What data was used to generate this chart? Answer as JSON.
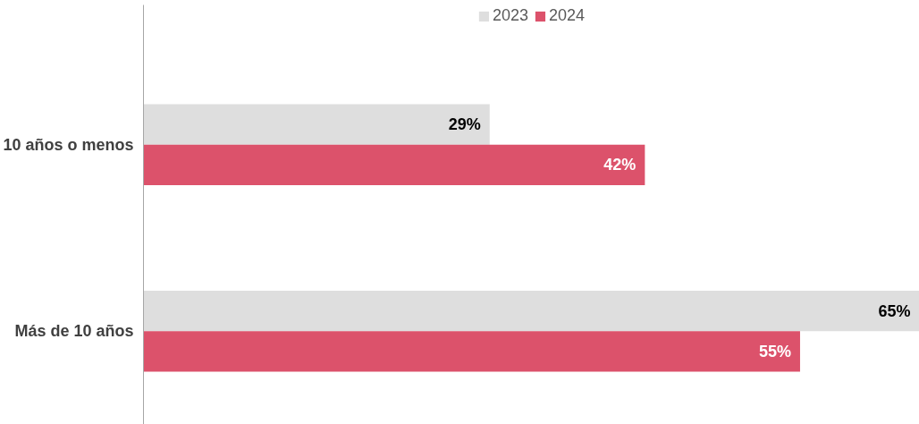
{
  "chart_data": {
    "type": "bar",
    "orientation": "horizontal",
    "categories": [
      "10 años o menos",
      "Más de 10 años"
    ],
    "series": [
      {
        "name": "2023",
        "color": "#dedede",
        "values": [
          29,
          65
        ],
        "value_labels": [
          "29%",
          "65%"
        ]
      },
      {
        "name": "2024",
        "color": "#dc526b",
        "values": [
          42,
          55
        ],
        "value_labels": [
          "42%",
          "55%"
        ]
      }
    ],
    "legend": "top",
    "grid": false
  }
}
